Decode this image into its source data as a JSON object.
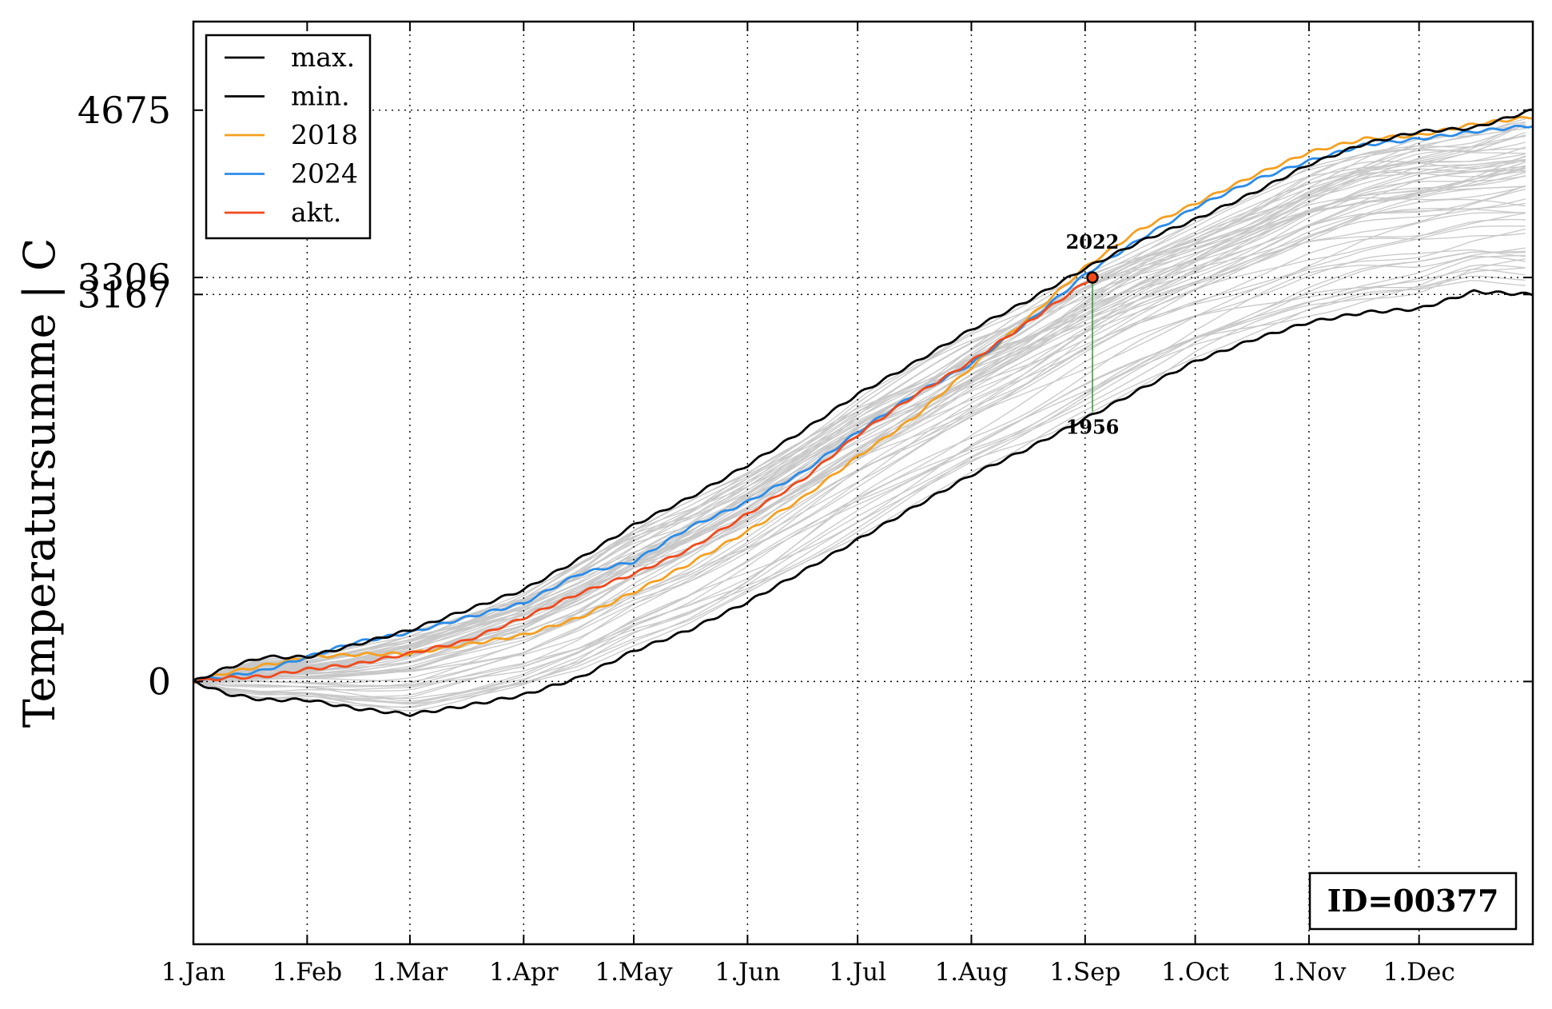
{
  "chart_data": {
    "type": "line",
    "xlabel": "",
    "ylabel": "Temperatursumme | C",
    "x_ticks": [
      "1.Jan",
      "1.Feb",
      "1.Mar",
      "1.Apr",
      "1.May",
      "1.Jun",
      "1.Jul",
      "1.Aug",
      "1.Sep",
      "1.Oct",
      "1.Nov",
      "1.Dec"
    ],
    "x_tick_days": [
      1,
      32,
      60,
      91,
      121,
      152,
      182,
      213,
      244,
      274,
      305,
      335
    ],
    "xlim": [
      1,
      366
    ],
    "ylim": [
      -2150,
      5400
    ],
    "y_ticks": [
      0,
      3167,
      3306,
      4675
    ],
    "y_tick_labels": [
      "0",
      "3167",
      "3306",
      "4675"
    ],
    "grid": true,
    "legend_position": "top-left",
    "colors": {
      "max": "#000000",
      "min": "#000000",
      "2018": "#f5a020",
      "2024": "#2b8ce8",
      "akt": "#f04a1c",
      "history": "#c8c8c8",
      "marker_line": "#2a9a2a"
    },
    "series": [
      {
        "name": "max.",
        "color": "#000000",
        "x": [
          1,
          10,
          20,
          32,
          45,
          60,
          75,
          91,
          106,
          121,
          136,
          152,
          167,
          182,
          197,
          213,
          228,
          244,
          259,
          274,
          290,
          305,
          320,
          335,
          350,
          366
        ],
        "y": [
          0,
          110,
          200,
          200,
          300,
          420,
          580,
          750,
          1000,
          1280,
          1500,
          1770,
          2050,
          2350,
          2600,
          2880,
          3110,
          3380,
          3600,
          3780,
          4000,
          4230,
          4400,
          4500,
          4530,
          4675
        ]
      },
      {
        "name": "min.",
        "color": "#000000",
        "x": [
          1,
          10,
          20,
          32,
          45,
          60,
          75,
          91,
          106,
          121,
          136,
          152,
          167,
          182,
          197,
          213,
          228,
          244,
          259,
          274,
          290,
          305,
          320,
          335,
          350,
          366
        ],
        "y": [
          0,
          -100,
          -150,
          -150,
          -220,
          -270,
          -200,
          -110,
          30,
          250,
          420,
          650,
          900,
          1160,
          1420,
          1690,
          1900,
          2150,
          2390,
          2620,
          2800,
          2940,
          3020,
          3050,
          3190,
          3167
        ]
      },
      {
        "name": "2018",
        "color": "#f5a020",
        "x": [
          1,
          10,
          20,
          32,
          45,
          60,
          75,
          91,
          106,
          121,
          136,
          152,
          167,
          182,
          197,
          213,
          228,
          244,
          259,
          274,
          290,
          305,
          320,
          335,
          350,
          366
        ],
        "y": [
          0,
          70,
          130,
          200,
          220,
          230,
          300,
          380,
          520,
          730,
          960,
          1230,
          1500,
          1840,
          2150,
          2570,
          2960,
          3390,
          3700,
          3910,
          4140,
          4330,
          4440,
          4470,
          4560,
          4620
        ]
      },
      {
        "name": "2024",
        "color": "#2b8ce8",
        "x": [
          1,
          10,
          20,
          32,
          45,
          60,
          75,
          91,
          106,
          121,
          136,
          152,
          167,
          182,
          197,
          213,
          228,
          244,
          259,
          274,
          290,
          305,
          320,
          335,
          350,
          366
        ],
        "y": [
          0,
          40,
          90,
          200,
          320,
          400,
          520,
          640,
          880,
          980,
          1260,
          1470,
          1710,
          2040,
          2340,
          2600,
          2930,
          3330,
          3620,
          3880,
          4100,
          4260,
          4390,
          4440,
          4500,
          4550
        ]
      },
      {
        "name": "akt.",
        "color": "#f04a1c",
        "x": [
          1,
          10,
          20,
          32,
          45,
          60,
          75,
          91,
          106,
          121,
          136,
          152,
          167,
          182,
          197,
          213,
          228,
          246
        ],
        "y": [
          0,
          30,
          40,
          100,
          140,
          230,
          330,
          520,
          720,
          880,
          1080,
          1370,
          1650,
          2020,
          2330,
          2620,
          2930,
          3306
        ]
      }
    ],
    "history_count": 60,
    "annotation": {
      "day": 246,
      "value": 3306,
      "min_value": 2210,
      "top_label": "2022",
      "bottom_label": "1956"
    },
    "id_label": "ID=00377"
  }
}
